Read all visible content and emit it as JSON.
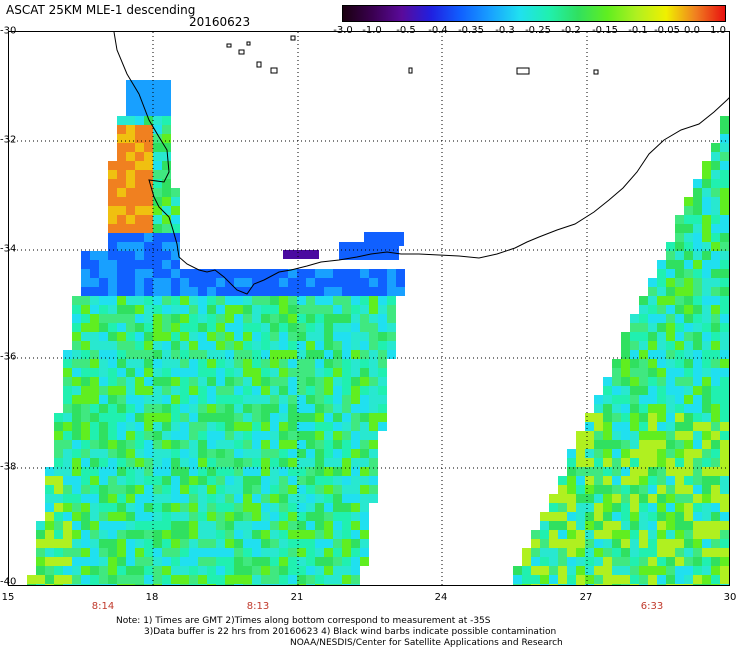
{
  "header": {
    "title": "ASCAT 25KM MLE-1 descending",
    "date": "20160623"
  },
  "colorbar": {
    "ticks": [
      "-3.0",
      "-1.0",
      "-0.5",
      "-0.4",
      "-0.35",
      "-0.3",
      "-0.25",
      "-0.2",
      "-0.15",
      "-0.1",
      "-0.05",
      "0.0",
      "1.0"
    ],
    "colors": [
      "#1a0010",
      "#3a0050",
      "#5a0a9a",
      "#2020e0",
      "#1060ff",
      "#18a0ff",
      "#20e0f0",
      "#20f0b0",
      "#30e060",
      "#60ee20",
      "#b0f020",
      "#f0f000",
      "#f08020",
      "#e81010"
    ]
  },
  "map": {
    "lat_labels": [
      "-30",
      "-32",
      "-34",
      "-36",
      "-38",
      "-40"
    ],
    "lon_labels": [
      "15",
      "18",
      "21",
      "24",
      "27",
      "30"
    ],
    "time_labels": [
      "8:14",
      "8:13",
      "6:33"
    ]
  },
  "notes": {
    "line1": "Note: 1) Times are GMT 2)Times along bottom correspond to measurement at -35S",
    "line2": "3)Data buffer is 22 hrs from 20160623 4) Black wind barbs indicate possible contamination",
    "line3": "NOAA/NESDIS/Center for Satellite Applications and Research"
  }
}
